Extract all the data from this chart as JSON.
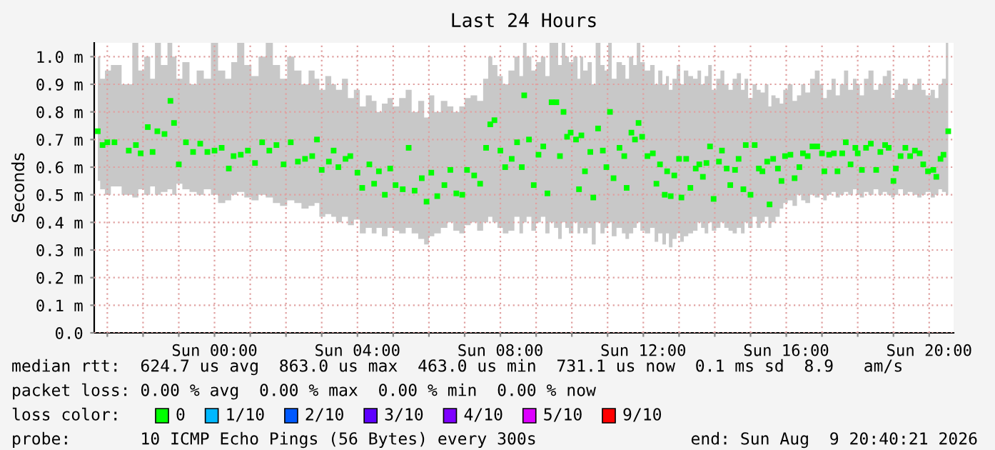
{
  "chart_data": {
    "type": "scatter",
    "title": "Last 24 Hours",
    "ylabel": "Seconds",
    "xlim": [
      "2026-08-08T20:38",
      "2026-08-09T20:41"
    ],
    "xticks": [
      {
        "value": "2026-08-08T21:00",
        "label": null
      },
      {
        "value": "2026-08-08T22:00",
        "label": null
      },
      {
        "value": "2026-08-08T23:00",
        "label": null
      },
      {
        "value": "2026-08-09T00:00",
        "label": "Sun 00:00"
      },
      {
        "value": "2026-08-09T01:00",
        "label": null
      },
      {
        "value": "2026-08-09T02:00",
        "label": null
      },
      {
        "value": "2026-08-09T03:00",
        "label": null
      },
      {
        "value": "2026-08-09T04:00",
        "label": "Sun 04:00"
      },
      {
        "value": "2026-08-09T05:00",
        "label": null
      },
      {
        "value": "2026-08-09T06:00",
        "label": null
      },
      {
        "value": "2026-08-09T07:00",
        "label": null
      },
      {
        "value": "2026-08-09T08:00",
        "label": "Sun 08:00"
      },
      {
        "value": "2026-08-09T09:00",
        "label": null
      },
      {
        "value": "2026-08-09T10:00",
        "label": null
      },
      {
        "value": "2026-08-09T11:00",
        "label": null
      },
      {
        "value": "2026-08-09T12:00",
        "label": "Sun 12:00"
      },
      {
        "value": "2026-08-09T13:00",
        "label": null
      },
      {
        "value": "2026-08-09T14:00",
        "label": null
      },
      {
        "value": "2026-08-09T15:00",
        "label": null
      },
      {
        "value": "2026-08-09T16:00",
        "label": "Sun 16:00"
      },
      {
        "value": "2026-08-09T17:00",
        "label": null
      },
      {
        "value": "2026-08-09T18:00",
        "label": null
      },
      {
        "value": "2026-08-09T19:00",
        "label": null
      },
      {
        "value": "2026-08-09T20:00",
        "label": "Sun 20:00"
      }
    ],
    "ylim": [
      0,
      1.05
    ],
    "yticks": [
      {
        "value": 0,
        "label": "0.0"
      },
      {
        "value": 0.1,
        "label": "0.1 m"
      },
      {
        "value": 0.2,
        "label": "0.2 m"
      },
      {
        "value": 0.3,
        "label": "0.3 m"
      },
      {
        "value": 0.4,
        "label": "0.4 m"
      },
      {
        "value": 0.5,
        "label": "0.5 m"
      },
      {
        "value": 0.6,
        "label": "0.6 m"
      },
      {
        "value": 0.7,
        "label": "0.7 m"
      },
      {
        "value": 0.8,
        "label": "0.8 m"
      },
      {
        "value": 0.9,
        "label": "0.9 m"
      },
      {
        "value": 1.0,
        "label": "1.0 m"
      }
    ],
    "grid": true,
    "marker": "square",
    "series": [
      {
        "color": "#00ff00",
        "x": [
          "2026-08-08T20:44",
          "2026-08-08T20:52",
          "2026-08-08T21:00",
          "2026-08-08T21:12",
          "2026-08-08T21:36",
          "2026-08-08T21:48",
          "2026-08-08T21:56",
          "2026-08-08T22:08",
          "2026-08-08T22:16",
          "2026-08-08T22:24",
          "2026-08-08T22:36",
          "2026-08-08T22:46",
          "2026-08-08T22:52",
          "2026-08-08T23:00",
          "2026-08-08T23:12",
          "2026-08-08T23:24",
          "2026-08-08T23:36",
          "2026-08-08T23:48",
          "2026-08-09T00:00",
          "2026-08-09T00:12",
          "2026-08-09T00:24",
          "2026-08-09T00:32",
          "2026-08-09T00:44",
          "2026-08-09T00:56",
          "2026-08-09T01:08",
          "2026-08-09T01:20",
          "2026-08-09T01:32",
          "2026-08-09T01:44",
          "2026-08-09T01:56",
          "2026-08-09T02:08",
          "2026-08-09T02:20",
          "2026-08-09T02:32",
          "2026-08-09T02:44",
          "2026-08-09T02:52",
          "2026-08-09T03:00",
          "2026-08-09T03:12",
          "2026-08-09T03:20",
          "2026-08-09T03:28",
          "2026-08-09T03:40",
          "2026-08-09T03:48",
          "2026-08-09T04:00",
          "2026-08-09T04:08",
          "2026-08-09T04:20",
          "2026-08-09T04:28",
          "2026-08-09T04:36",
          "2026-08-09T04:46",
          "2026-08-09T04:55",
          "2026-08-09T05:04",
          "2026-08-09T05:16",
          "2026-08-09T05:26",
          "2026-08-09T05:36",
          "2026-08-09T05:48",
          "2026-08-09T05:56",
          "2026-08-09T06:04",
          "2026-08-09T06:14",
          "2026-08-09T06:26",
          "2026-08-09T06:36",
          "2026-08-09T06:46",
          "2026-08-09T06:56",
          "2026-08-09T07:04",
          "2026-08-09T07:16",
          "2026-08-09T07:26",
          "2026-08-09T07:36",
          "2026-08-09T07:43",
          "2026-08-09T07:50",
          "2026-08-09T08:00",
          "2026-08-09T08:08",
          "2026-08-09T08:19",
          "2026-08-09T08:28",
          "2026-08-09T08:36",
          "2026-08-09T08:40",
          "2026-08-09T08:48",
          "2026-08-09T08:56",
          "2026-08-09T09:04",
          "2026-08-09T09:12",
          "2026-08-09T09:19",
          "2026-08-09T09:26",
          "2026-08-09T09:34",
          "2026-08-09T09:40",
          "2026-08-09T09:46",
          "2026-08-09T09:52",
          "2026-08-09T09:58",
          "2026-08-09T10:07",
          "2026-08-09T10:12",
          "2026-08-09T10:16",
          "2026-08-09T10:22",
          "2026-08-09T10:31",
          "2026-08-09T10:36",
          "2026-08-09T10:44",
          "2026-08-09T10:52",
          "2026-08-09T10:58",
          "2026-08-09T11:04",
          "2026-08-09T11:10",
          "2026-08-09T11:20",
          "2026-08-09T11:28",
          "2026-08-09T11:32",
          "2026-08-09T11:40",
          "2026-08-09T11:46",
          "2026-08-09T11:52",
          "2026-08-09T11:58",
          "2026-08-09T12:07",
          "2026-08-09T12:16",
          "2026-08-09T12:22",
          "2026-08-09T12:28",
          "2026-08-09T12:36",
          "2026-08-09T12:40",
          "2026-08-09T12:46",
          "2026-08-09T12:52",
          "2026-08-09T13:00",
          "2026-08-09T13:04",
          "2026-08-09T13:12",
          "2026-08-09T13:19",
          "2026-08-09T13:28",
          "2026-08-09T13:34",
          "2026-08-09T13:40",
          "2026-08-09T13:46",
          "2026-08-09T13:52",
          "2026-08-09T13:58",
          "2026-08-09T14:07",
          "2026-08-09T14:12",
          "2026-08-09T14:20",
          "2026-08-09T14:26",
          "2026-08-09T14:34",
          "2026-08-09T14:40",
          "2026-08-09T14:48",
          "2026-08-09T14:52",
          "2026-08-09T15:00",
          "2026-08-09T15:07",
          "2026-08-09T15:14",
          "2026-08-09T15:20",
          "2026-08-09T15:28",
          "2026-08-09T15:32",
          "2026-08-09T15:38",
          "2026-08-09T15:46",
          "2026-08-09T15:52",
          "2026-08-09T15:58",
          "2026-08-09T16:07",
          "2026-08-09T16:14",
          "2026-08-09T16:22",
          "2026-08-09T16:28",
          "2026-08-09T16:36",
          "2026-08-09T16:44",
          "2026-08-09T16:52",
          "2026-08-09T17:00",
          "2026-08-09T17:04",
          "2026-08-09T17:12",
          "2026-08-09T17:20",
          "2026-08-09T17:26",
          "2026-08-09T17:34",
          "2026-08-09T17:40",
          "2026-08-09T17:48",
          "2026-08-09T17:56",
          "2026-08-09T18:00",
          "2026-08-09T18:07",
          "2026-08-09T18:14",
          "2026-08-09T18:22",
          "2026-08-09T18:31",
          "2026-08-09T18:38",
          "2026-08-09T18:46",
          "2026-08-09T18:52",
          "2026-08-09T19:00",
          "2026-08-09T19:04",
          "2026-08-09T19:12",
          "2026-08-09T19:20",
          "2026-08-09T19:28",
          "2026-08-09T19:36",
          "2026-08-09T19:44",
          "2026-08-09T19:50",
          "2026-08-09T19:58",
          "2026-08-09T20:07",
          "2026-08-09T20:12",
          "2026-08-09T20:19",
          "2026-08-09T20:24",
          "2026-08-09T20:32"
        ],
        "values": [
          0.73,
          0.68,
          0.69,
          0.69,
          0.66,
          0.68,
          0.65,
          0.745,
          0.655,
          0.73,
          0.72,
          0.84,
          0.76,
          0.61,
          0.69,
          0.655,
          0.685,
          0.655,
          0.66,
          0.67,
          0.595,
          0.64,
          0.645,
          0.66,
          0.615,
          0.69,
          0.66,
          0.68,
          0.61,
          0.69,
          0.62,
          0.63,
          0.64,
          0.7,
          0.59,
          0.62,
          0.66,
          0.6,
          0.63,
          0.64,
          0.58,
          0.525,
          0.61,
          0.54,
          0.585,
          0.5,
          0.595,
          0.535,
          0.52,
          0.67,
          0.515,
          0.56,
          0.475,
          0.58,
          0.495,
          0.535,
          0.59,
          0.505,
          0.5,
          0.59,
          0.57,
          0.54,
          0.67,
          0.755,
          0.77,
          0.66,
          0.6,
          0.63,
          0.69,
          0.6,
          0.86,
          0.7,
          0.535,
          0.645,
          0.675,
          0.505,
          0.835,
          0.835,
          0.64,
          0.8,
          0.71,
          0.725,
          0.7,
          0.52,
          0.715,
          0.585,
          0.655,
          0.49,
          0.74,
          0.66,
          0.6,
          0.8,
          0.56,
          0.67,
          0.64,
          0.525,
          0.725,
          0.7,
          0.76,
          0.71,
          0.64,
          0.65,
          0.54,
          0.61,
          0.5,
          0.585,
          0.495,
          0.57,
          0.63,
          0.49,
          0.63,
          0.525,
          0.595,
          0.61,
          0.565,
          0.615,
          0.675,
          0.485,
          0.62,
          0.66,
          0.595,
          0.535,
          0.59,
          0.63,
          0.52,
          0.68,
          0.5,
          0.68,
          0.595,
          0.585,
          0.62,
          0.465,
          0.63,
          0.595,
          0.55,
          0.64,
          0.645,
          0.56,
          0.6,
          0.65,
          0.64,
          0.675,
          0.675,
          0.65,
          0.585,
          0.645,
          0.65,
          0.585,
          0.65,
          0.69,
          0.61,
          0.67,
          0.65,
          0.59,
          0.67,
          0.685,
          0.59,
          0.655,
          0.68,
          0.67,
          0.55,
          0.595,
          0.64,
          0.67,
          0.64,
          0.66,
          0.65,
          0.61,
          0.585,
          0.59,
          0.565,
          0.63,
          0.645,
          0.73
        ],
        "lower": [
          0.55,
          0.52,
          0.5,
          0.53,
          0.5,
          0.49,
          0.52,
          0.5,
          0.53,
          0.5,
          0.51,
          0.52,
          0.5,
          0.54,
          0.52,
          0.51,
          0.5,
          0.52,
          0.5,
          0.47,
          0.48,
          0.5,
          0.51,
          0.49,
          0.48,
          0.5,
          0.49,
          0.47,
          0.46,
          0.48,
          0.47,
          0.45,
          0.46,
          0.47,
          0.42,
          0.43,
          0.42,
          0.4,
          0.42,
          0.39,
          0.41,
          0.36,
          0.38,
          0.36,
          0.38,
          0.35,
          0.38,
          0.37,
          0.36,
          0.38,
          0.36,
          0.34,
          0.32,
          0.35,
          0.36,
          0.38,
          0.4,
          0.37,
          0.36,
          0.39,
          0.4,
          0.37,
          0.4,
          0.42,
          0.4,
          0.38,
          0.36,
          0.37,
          0.42,
          0.36,
          0.4,
          0.42,
          0.37,
          0.4,
          0.42,
          0.36,
          0.4,
          0.38,
          0.34,
          0.4,
          0.38,
          0.36,
          0.4,
          0.36,
          0.38,
          0.36,
          0.38,
          0.32,
          0.4,
          0.36,
          0.38,
          0.4,
          0.35,
          0.38,
          0.36,
          0.34,
          0.36,
          0.38,
          0.4,
          0.37,
          0.36,
          0.38,
          0.33,
          0.36,
          0.32,
          0.36,
          0.31,
          0.34,
          0.36,
          0.33,
          0.35,
          0.36,
          0.37,
          0.4,
          0.38,
          0.36,
          0.4,
          0.37,
          0.38,
          0.4,
          0.38,
          0.37,
          0.36,
          0.38,
          0.36,
          0.4,
          0.38,
          0.42,
          0.38,
          0.4,
          0.42,
          0.38,
          0.4,
          0.42,
          0.45,
          0.47,
          0.48,
          0.46,
          0.5,
          0.48,
          0.47,
          0.5,
          0.49,
          0.5,
          0.48,
          0.5,
          0.51,
          0.49,
          0.5,
          0.51,
          0.5,
          0.52,
          0.5,
          0.49,
          0.51,
          0.5,
          0.52,
          0.5,
          0.51,
          0.5,
          0.49,
          0.5,
          0.52,
          0.5,
          0.51,
          0.5,
          0.49,
          0.5,
          0.51,
          0.49,
          0.5,
          0.52,
          0.51,
          0.5
        ],
        "upper": [
          1.0,
          0.92,
          0.95,
          0.97,
          0.9,
          1.05,
          0.95,
          1.0,
          0.92,
          1.05,
          0.97,
          1.05,
          1.0,
          0.92,
          0.98,
          0.9,
          0.95,
          0.92,
          1.05,
          0.95,
          0.92,
          0.98,
          1.05,
          0.97,
          0.93,
          1.0,
          1.05,
          0.97,
          0.92,
          1.0,
          0.95,
          0.9,
          0.95,
          0.92,
          0.88,
          0.93,
          0.9,
          0.88,
          0.92,
          0.85,
          0.88,
          0.82,
          0.86,
          0.84,
          0.8,
          0.83,
          0.85,
          0.82,
          0.85,
          0.88,
          0.8,
          0.84,
          0.78,
          0.86,
          0.8,
          0.84,
          0.82,
          0.8,
          0.82,
          0.85,
          0.86,
          0.84,
          0.92,
          1.0,
          0.97,
          0.93,
          0.9,
          0.95,
          1.0,
          0.93,
          1.05,
          1.0,
          0.95,
          0.98,
          1.0,
          0.93,
          1.05,
          1.05,
          0.97,
          1.05,
          1.0,
          0.98,
          1.0,
          0.92,
          1.0,
          0.95,
          0.98,
          0.9,
          1.05,
          0.97,
          0.95,
          1.05,
          0.92,
          0.98,
          0.97,
          0.92,
          1.0,
          0.97,
          1.05,
          0.98,
          0.95,
          0.97,
          0.9,
          0.95,
          0.9,
          0.93,
          0.88,
          0.92,
          0.97,
          0.9,
          0.95,
          0.93,
          0.92,
          0.95,
          0.9,
          0.93,
          0.97,
          0.88,
          0.92,
          0.95,
          0.9,
          0.88,
          0.92,
          0.94,
          0.88,
          0.92,
          0.85,
          0.9,
          0.88,
          0.87,
          0.9,
          0.82,
          0.86,
          0.85,
          0.83,
          0.88,
          0.9,
          0.84,
          0.86,
          0.9,
          0.87,
          0.92,
          0.95,
          0.9,
          0.85,
          0.88,
          0.92,
          0.86,
          0.9,
          0.95,
          0.88,
          0.92,
          0.9,
          0.86,
          0.92,
          0.95,
          0.88,
          0.9,
          0.93,
          0.95,
          0.85,
          0.88,
          0.9,
          0.92,
          0.88,
          0.9,
          0.92,
          0.88,
          0.86,
          0.88,
          0.85,
          0.9,
          0.92,
          1.05
        ]
      }
    ],
    "annotations": [
      "median rtt:  624.7 us avg  863.0 us max  463.0 us min  731.1 us now  0.1 ms sd  8.9   am/s",
      "packet loss: 0.00 % avg  0.00 % max  0.00 % min  0.00 % now",
      "loss color:",
      "0",
      "1/10",
      "2/10",
      "3/10",
      "4/10",
      "5/10",
      "9/10",
      "probe:       10 ICMP Echo Pings (56 Bytes) every 300s",
      "end: Sun Aug  9 20:40:21 2026"
    ]
  }
}
